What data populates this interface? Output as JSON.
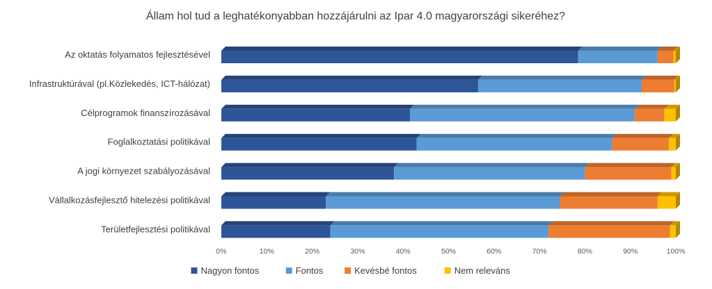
{
  "chart_data": {
    "type": "bar",
    "orientation": "horizontal",
    "stacked": "percent",
    "style": "3d",
    "title": "Állam hol tud a leghatékonyabban hozzájárulni az Ipar 4.0 magyarországi sikeréhez?",
    "categories": [
      "Az oktatás folyamatos fejlesztésével",
      "Infrastruktúrával (pl.Közlekedés, ICT-hálózat)",
      "Célprogramok finanszírozásával",
      "Foglalkoztatási politikával",
      "A jogi környezet szabályozásával",
      "Vállalkozásfejlesztő hitelezési politikával",
      "Területfejlesztési politikával"
    ],
    "series": [
      {
        "name": "Nagyon fontos",
        "color": "#2e5597",
        "values": [
          78.5,
          56.5,
          41.5,
          43,
          38,
          23,
          24
        ]
      },
      {
        "name": "Fontos",
        "color": "#5b9bd5",
        "values": [
          17.5,
          36,
          49.5,
          43,
          42,
          51.5,
          48
        ]
      },
      {
        "name": "Kevésbé fontos",
        "color": "#ed7d31",
        "values": [
          3.5,
          7.2,
          6.5,
          12.5,
          19,
          21.5,
          26.7
        ]
      },
      {
        "name": "Nem releváns",
        "color": "#ffc000",
        "values": [
          0.5,
          0.3,
          2.5,
          1.5,
          1,
          4,
          1.3
        ]
      }
    ],
    "xlim": [
      0,
      100
    ],
    "xticks": [
      "0%",
      "10%",
      "20%",
      "30%",
      "40%",
      "50%",
      "60%",
      "70%",
      "80%",
      "90%",
      "100%"
    ],
    "grid": false,
    "legend": "bottom"
  }
}
